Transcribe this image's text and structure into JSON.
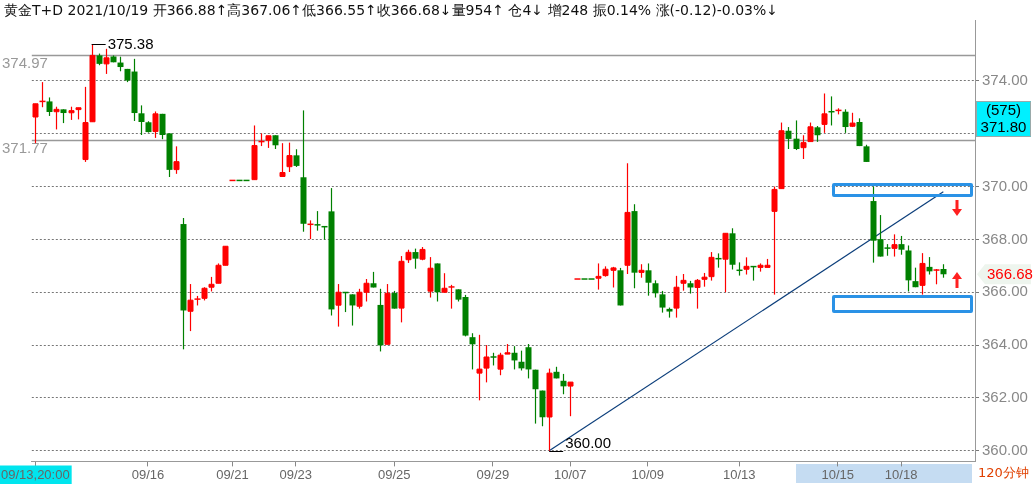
{
  "chart_data": {
    "type": "candlestick",
    "title": "黄金T+D 2021/10/19 开366.88↑高367.06↑低366.55↑收366.68↓量954↑ 仓4↓ 增248 振0.14% 涨(-0.12)-0.03%↓",
    "categories": [
      "09/13,20:00",
      null,
      null,
      null,
      null,
      null,
      null,
      null,
      null,
      null,
      null,
      null,
      null,
      null,
      null,
      null,
      "09/16",
      null,
      null,
      null,
      null,
      null,
      null,
      null,
      null,
      null,
      null,
      null,
      "09/21",
      null,
      null,
      null,
      null,
      null,
      null,
      null,
      null,
      "09/23",
      null,
      null,
      null,
      null,
      null,
      null,
      null,
      null,
      null,
      null,
      null,
      null,
      null,
      "09/25",
      null,
      null,
      null,
      null,
      null,
      null,
      null,
      null,
      null,
      null,
      null,
      null,
      null,
      "09/29",
      null,
      null,
      null,
      null,
      null,
      null,
      null,
      null,
      null,
      null,
      "10/07",
      null,
      null,
      null,
      null,
      null,
      null,
      null,
      null,
      null,
      null,
      "10/09",
      null,
      null,
      null,
      null,
      null,
      null,
      null,
      null,
      null,
      null,
      null,
      null,
      "10/13",
      null,
      null,
      null,
      null,
      null,
      null,
      null,
      null,
      null,
      null,
      null,
      null,
      null,
      "10/15",
      null,
      null,
      null,
      null,
      null,
      null,
      null,
      null,
      "10/18",
      null,
      null,
      null,
      null,
      null,
      null
    ],
    "ohlc": [
      [
        372.63,
        373.13,
        371.64,
        373.13
      ],
      [
        373.22,
        373.95,
        373.0,
        373.22
      ],
      [
        373.22,
        373.37,
        372.67,
        372.82
      ],
      [
        372.83,
        373.02,
        372.16,
        372.92
      ],
      [
        372.92,
        372.92,
        372.4,
        372.78
      ],
      [
        372.79,
        373.02,
        372.52,
        372.87
      ],
      [
        372.91,
        372.98,
        372.54,
        372.98
      ],
      [
        371.02,
        373.77,
        370.93,
        372.42
      ],
      [
        372.45,
        375.38,
        372.45,
        374.96
      ],
      [
        374.96,
        375.03,
        374.59,
        374.64
      ],
      [
        374.64,
        375.21,
        374.26,
        374.87
      ],
      [
        374.92,
        374.96,
        374.7,
        374.7
      ],
      [
        374.69,
        374.91,
        374.36,
        374.52
      ],
      [
        374.45,
        374.45,
        373.95,
        374.01
      ],
      [
        374.35,
        374.83,
        372.48,
        372.78
      ],
      [
        372.77,
        373.07,
        371.95,
        372.44
      ],
      [
        372.43,
        372.47,
        372.04,
        372.06
      ],
      [
        372.08,
        372.84,
        371.84,
        372.75
      ],
      [
        372.75,
        372.75,
        371.79,
        371.95
      ],
      [
        372.01,
        372.01,
        370.36,
        370.63
      ],
      [
        370.64,
        371.52,
        370.48,
        370.94
      ],
      [
        368.58,
        368.81,
        363.84,
        365.31
      ],
      [
        365.28,
        366.31,
        364.53,
        365.7
      ],
      [
        365.74,
        365.86,
        365.5,
        365.74
      ],
      [
        365.77,
        366.19,
        365.69,
        366.15
      ],
      [
        366.19,
        366.58,
        366.03,
        366.3
      ],
      [
        366.34,
        367.09,
        366.34,
        367.02
      ],
      [
        367.02,
        367.74,
        367.02,
        367.74
      ],
      [
        370.23,
        370.23,
        370.23,
        370.23
      ],
      [
        370.23,
        370.23,
        370.23,
        370.23
      ],
      [
        370.23,
        370.23,
        370.23,
        370.23
      ],
      [
        370.26,
        372.31,
        370.26,
        371.55
      ],
      [
        371.7,
        372.01,
        371.53,
        371.7
      ],
      [
        371.75,
        371.92,
        371.46,
        371.92
      ],
      [
        371.94,
        371.94,
        371.42,
        371.56
      ],
      [
        370.38,
        371.64,
        370.38,
        370.53
      ],
      [
        370.75,
        371.66,
        370.55,
        371.17
      ],
      [
        371.18,
        371.41,
        370.74,
        370.78
      ],
      [
        370.35,
        372.88,
        368.29,
        368.59
      ],
      [
        368.57,
        368.72,
        368.01,
        368.57
      ],
      [
        368.55,
        369.07,
        368.33,
        368.55
      ],
      [
        368.48,
        368.48,
        367.99,
        368.48
      ],
      [
        369.06,
        369.94,
        365.12,
        365.35
      ],
      [
        365.51,
        366.31,
        364.7,
        366.0
      ],
      [
        365.99,
        365.99,
        365.25,
        365.99
      ],
      [
        365.92,
        365.92,
        364.74,
        365.5
      ],
      [
        365.47,
        366.13,
        365.38,
        366.0
      ],
      [
        366.0,
        366.5,
        365.65,
        366.34
      ],
      [
        366.34,
        366.77,
        366.18,
        366.18
      ],
      [
        365.52,
        366.13,
        363.76,
        363.99
      ],
      [
        364.03,
        366.31,
        364.03,
        365.96
      ],
      [
        365.97,
        366.05,
        365.38,
        365.38
      ],
      [
        365.4,
        367.37,
        364.86,
        367.17
      ],
      [
        367.23,
        367.61,
        367.11,
        367.51
      ],
      [
        367.52,
        367.65,
        366.89,
        367.27
      ],
      [
        367.25,
        367.71,
        367.21,
        367.62
      ],
      [
        366.04,
        367.33,
        365.8,
        366.91
      ],
      [
        367.09,
        367.09,
        365.65,
        366.0
      ],
      [
        366.0,
        366.72,
        366.0,
        366.15
      ],
      [
        366.2,
        366.28,
        365.38,
        366.2
      ],
      [
        366.11,
        366.11,
        365.65,
        365.72
      ],
      [
        365.82,
        365.9,
        364.33,
        364.36
      ],
      [
        364.3,
        364.45,
        363.08,
        364.03
      ],
      [
        362.94,
        364.39,
        361.91,
        363.09
      ],
      [
        363.13,
        364.0,
        362.59,
        363.55
      ],
      [
        363.55,
        363.71,
        363.23,
        363.55
      ],
      [
        363.09,
        363.71,
        362.86,
        363.62
      ],
      [
        363.66,
        364.04,
        363.66,
        363.71
      ],
      [
        363.71,
        363.96,
        363.08,
        363.42
      ],
      [
        363.37,
        363.79,
        363.04,
        363.12
      ],
      [
        363.92,
        364.04,
        362.74,
        363.08
      ],
      [
        363.07,
        363.07,
        361.03,
        362.33
      ],
      [
        362.28,
        362.28,
        360.93,
        361.27
      ],
      [
        361.28,
        363.11,
        360.0,
        362.94
      ],
      [
        362.99,
        363.18,
        362.74,
        362.74
      ],
      [
        362.65,
        362.91,
        362.14,
        362.44
      ],
      [
        362.45,
        362.6,
        361.31,
        362.6
      ],
      [
        366.5,
        366.5,
        366.5,
        366.5
      ],
      [
        366.5,
        366.5,
        366.5,
        366.5
      ],
      [
        366.5,
        366.5,
        366.5,
        366.5
      ],
      [
        366.53,
        367.09,
        366.1,
        366.6
      ],
      [
        366.63,
        366.98,
        366.59,
        366.87
      ],
      [
        366.83,
        366.96,
        366.18,
        366.92
      ],
      [
        366.83,
        366.92,
        365.5,
        365.5
      ],
      [
        367.02,
        370.88,
        366.69,
        369.02
      ],
      [
        369.07,
        369.33,
        366.15,
        366.74
      ],
      [
        366.75,
        367.06,
        366.55,
        366.83
      ],
      [
        366.83,
        367.09,
        365.87,
        366.36
      ],
      [
        366.34,
        366.45,
        365.8,
        365.96
      ],
      [
        365.92,
        366.05,
        365.23,
        365.42
      ],
      [
        365.37,
        365.42,
        365.04,
        365.27
      ],
      [
        365.4,
        366.62,
        365.04,
        366.19
      ],
      [
        366.34,
        366.69,
        366.06,
        366.45
      ],
      [
        366.34,
        366.43,
        365.95,
        366.18
      ],
      [
        366.18,
        366.5,
        365.38,
        366.45
      ],
      [
        366.49,
        366.73,
        366.21,
        366.57
      ],
      [
        366.59,
        367.52,
        366.44,
        367.32
      ],
      [
        367.27,
        367.47,
        366.93,
        367.27
      ],
      [
        367.25,
        368.23,
        366.0,
        368.23
      ],
      [
        368.23,
        368.42,
        366.86,
        367.04
      ],
      [
        366.83,
        367.13,
        366.63,
        366.83
      ],
      [
        366.87,
        367.32,
        366.67,
        366.98
      ],
      [
        366.97,
        366.97,
        366.44,
        366.93
      ],
      [
        366.94,
        367.09,
        366.78,
        367.02
      ],
      [
        366.94,
        367.26,
        366.94,
        367.02
      ],
      [
        369.06,
        370.0,
        365.91,
        369.89
      ],
      [
        369.92,
        372.42,
        369.92,
        372.11
      ],
      [
        372.11,
        372.25,
        371.42,
        371.8
      ],
      [
        371.81,
        372.5,
        371.38,
        371.42
      ],
      [
        371.47,
        371.94,
        371.04,
        371.66
      ],
      [
        371.7,
        372.42,
        371.7,
        372.26
      ],
      [
        372.24,
        372.29,
        371.69,
        371.94
      ],
      [
        372.35,
        373.52,
        372.03,
        372.75
      ],
      [
        372.83,
        373.41,
        372.31,
        372.83
      ],
      [
        372.88,
        372.96,
        372.73,
        372.88
      ],
      [
        372.83,
        372.92,
        372.03,
        372.25
      ],
      [
        372.28,
        372.79,
        372.25,
        372.4
      ],
      [
        372.44,
        372.58,
        371.53,
        371.53
      ],
      [
        371.52,
        371.58,
        370.93,
        370.93
      ],
      [
        369.45,
        370.0,
        367.12,
        367.95
      ],
      [
        368.01,
        368.92,
        367.35,
        367.35
      ],
      [
        367.67,
        367.82,
        367.38,
        367.67
      ],
      [
        367.66,
        368.19,
        367.35,
        367.8
      ],
      [
        367.82,
        368.13,
        367.42,
        367.61
      ],
      [
        367.58,
        367.77,
        366.03,
        366.45
      ],
      [
        366.42,
        366.93,
        366.19,
        366.19
      ],
      [
        366.26,
        367.48,
        365.91,
        367.09
      ],
      [
        366.96,
        367.33,
        366.67,
        366.79
      ],
      [
        366.84,
        366.88,
        366.3,
        366.84
      ],
      [
        366.88,
        367.06,
        366.55,
        366.68
      ]
    ],
    "colors": [
      "#ff0000",
      "#ff0000",
      "#008000",
      "#ff0000",
      "#008000",
      "#ff0000",
      "#ff0000",
      "#ff0000",
      "#ff0000",
      "#008000",
      "#ff0000",
      "#008000",
      "#008000",
      "#008000",
      "#008000",
      "#008000",
      "#008000",
      "#ff0000",
      "#008000",
      "#008000",
      "#ff0000",
      "#008000",
      "#ff0000",
      "#ff0000",
      "#ff0000",
      "#ff0000",
      "#ff0000",
      "#ff0000",
      "#ff0000",
      "#008000",
      "#008000",
      "#ff0000",
      "#ff0000",
      "#ff0000",
      "#008000",
      "#ff0000",
      "#ff0000",
      "#008000",
      "#008000",
      "#ff0000",
      "#008000",
      "#008000",
      "#008000",
      "#ff0000",
      "#008000",
      "#008000",
      "#ff0000",
      "#ff0000",
      "#008000",
      "#008000",
      "#ff0000",
      "#008000",
      "#ff0000",
      "#ff0000",
      "#008000",
      "#ff0000",
      "#ff0000",
      "#008000",
      "#ff0000",
      "#ff0000",
      "#008000",
      "#008000",
      "#008000",
      "#ff0000",
      "#ff0000",
      "#008000",
      "#ff0000",
      "#ff0000",
      "#008000",
      "#008000",
      "#008000",
      "#008000",
      "#008000",
      "#ff0000",
      "#008000",
      "#008000",
      "#ff0000",
      "#ff0000",
      "#008000",
      "#008000",
      "#ff0000",
      "#ff0000",
      "#ff0000",
      "#008000",
      "#ff0000",
      "#008000",
      "#ff0000",
      "#008000",
      "#008000",
      "#008000",
      "#008000",
      "#ff0000",
      "#ff0000",
      "#008000",
      "#ff0000",
      "#ff0000",
      "#ff0000",
      "#008000",
      "#ff0000",
      "#008000",
      "#008000",
      "#ff0000",
      "#008000",
      "#ff0000",
      "#ff0000",
      "#ff0000",
      "#ff0000",
      "#008000",
      "#008000",
      "#ff0000",
      "#ff0000",
      "#008000",
      "#ff0000",
      "#008000",
      "#ff0000",
      "#008000",
      "#ff0000",
      "#008000",
      "#008000",
      "#008000",
      "#008000",
      "#008000",
      "#ff0000",
      "#008000",
      "#008000",
      "#008000",
      "#ff0000",
      "#008000",
      "#ff0000",
      "#008000"
    ],
    "series": [
      {
        "type": "line",
        "color": "#0a3d7a",
        "values": [
          null,
          null,
          null,
          null,
          null,
          null,
          null,
          null,
          null,
          null,
          null,
          null,
          null,
          null,
          null,
          null,
          null,
          null,
          null,
          null,
          null,
          null,
          null,
          null,
          null,
          null,
          null,
          null,
          null,
          null,
          null,
          null,
          null,
          null,
          null,
          null,
          null,
          null,
          null,
          null,
          null,
          null,
          null,
          null,
          null,
          null,
          null,
          null,
          null,
          null,
          null,
          null,
          null,
          null,
          null,
          null,
          null,
          null,
          null,
          null,
          null,
          null,
          null,
          null,
          null,
          null,
          null,
          null,
          null,
          null,
          null,
          null,
          null,
          360.0,
          null,
          null,
          null,
          null,
          null,
          null,
          null,
          null,
          null,
          null,
          null,
          null,
          null,
          null,
          null,
          null,
          null,
          null,
          null,
          null,
          null,
          null,
          null,
          null,
          null,
          null,
          null,
          null,
          null,
          null,
          null,
          null,
          null,
          null,
          null,
          null,
          null,
          null,
          null,
          null,
          null,
          null,
          null,
          null,
          null,
          null,
          null,
          null,
          null,
          null,
          null,
          null,
          null,
          null,
          null,
          369.8
        ]
      }
    ],
    "ylim": [
      359.6,
      376.3
    ],
    "yticks": [
      {
        "value": 360,
        "label": "360.00"
      },
      {
        "value": 362,
        "label": "362.00"
      },
      {
        "value": 364,
        "label": "364.00"
      },
      {
        "value": 366,
        "label": "366.00"
      },
      {
        "value": 368,
        "label": "368.00"
      },
      {
        "value": 370,
        "label": "370.00"
      },
      {
        "value": 372,
        "label": null
      },
      {
        "value": 374,
        "label": "374.00"
      }
    ],
    "grid": "y",
    "ref_lines": [
      {
        "axis": "y",
        "value": 374.97,
        "label": "374.97",
        "color": "#999999"
      },
      {
        "axis": "y",
        "value": 371.77,
        "label": "371.77",
        "color": "#999999"
      }
    ],
    "annotations": [
      "375.38",
      "360.00",
      "366.68",
      "(575)",
      "371.80",
      "120分钟"
    ]
  }
}
